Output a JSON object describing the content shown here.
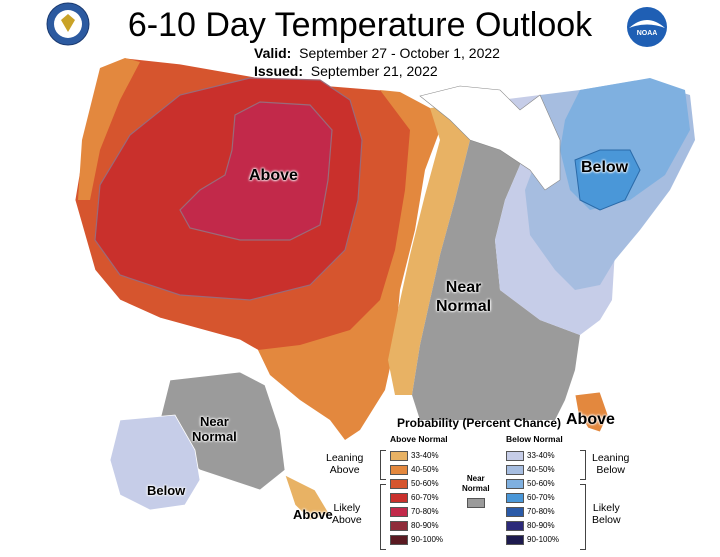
{
  "header": {
    "title": "6-10 Day Temperature Outlook",
    "valid_label": "Valid:",
    "valid_range": "September 27 - October 1, 2022",
    "issued_label": "Issued:",
    "issued_date": "September 21, 2022",
    "noaa_logo_text": "NOAA"
  },
  "map_labels": {
    "above_west": "Above",
    "below_east": "Below",
    "near_normal_line1": "Near",
    "near_normal_line2": "Normal",
    "above_florida": "Above",
    "alaska_near_line1": "Near",
    "alaska_near_line2": "Normal",
    "alaska_below": "Below",
    "alaska_above": "Above"
  },
  "legend": {
    "title": "Probability (Percent Chance)",
    "above_header": "Above Normal",
    "below_header": "Below Normal",
    "above_bins": [
      {
        "label": "33-40%",
        "color": "#e8b264"
      },
      {
        "label": "40-50%",
        "color": "#e3883e"
      },
      {
        "label": "50-60%",
        "color": "#d6552e"
      },
      {
        "label": "60-70%",
        "color": "#c9302c"
      },
      {
        "label": "70-80%",
        "color": "#c2294a"
      },
      {
        "label": "80-90%",
        "color": "#8f2c3a"
      },
      {
        "label": "90-100%",
        "color": "#5a1a22"
      }
    ],
    "below_bins": [
      {
        "label": "33-40%",
        "color": "#c6cde8"
      },
      {
        "label": "40-50%",
        "color": "#a6bde0"
      },
      {
        "label": "50-60%",
        "color": "#7fb0e0"
      },
      {
        "label": "60-70%",
        "color": "#4a97d8"
      },
      {
        "label": "70-80%",
        "color": "#2a5aa8"
      },
      {
        "label": "80-90%",
        "color": "#2c2a7a"
      },
      {
        "label": "90-100%",
        "color": "#1d1a4e"
      }
    ],
    "leaning_above_1": "Leaning",
    "leaning_above_2": "Above",
    "likely_above_1": "Likely",
    "likely_above_2": "Above",
    "leaning_below_1": "Leaning",
    "leaning_below_2": "Below",
    "likely_below_1": "Likely",
    "likely_below_2": "Below",
    "near_normal_1": "Near",
    "near_normal_2": "Normal",
    "near_normal_color": "#9b9b9b"
  },
  "colors": {
    "near_normal": "#9b9b9b",
    "outline": "#ffffff",
    "canada": "#ffffff"
  }
}
